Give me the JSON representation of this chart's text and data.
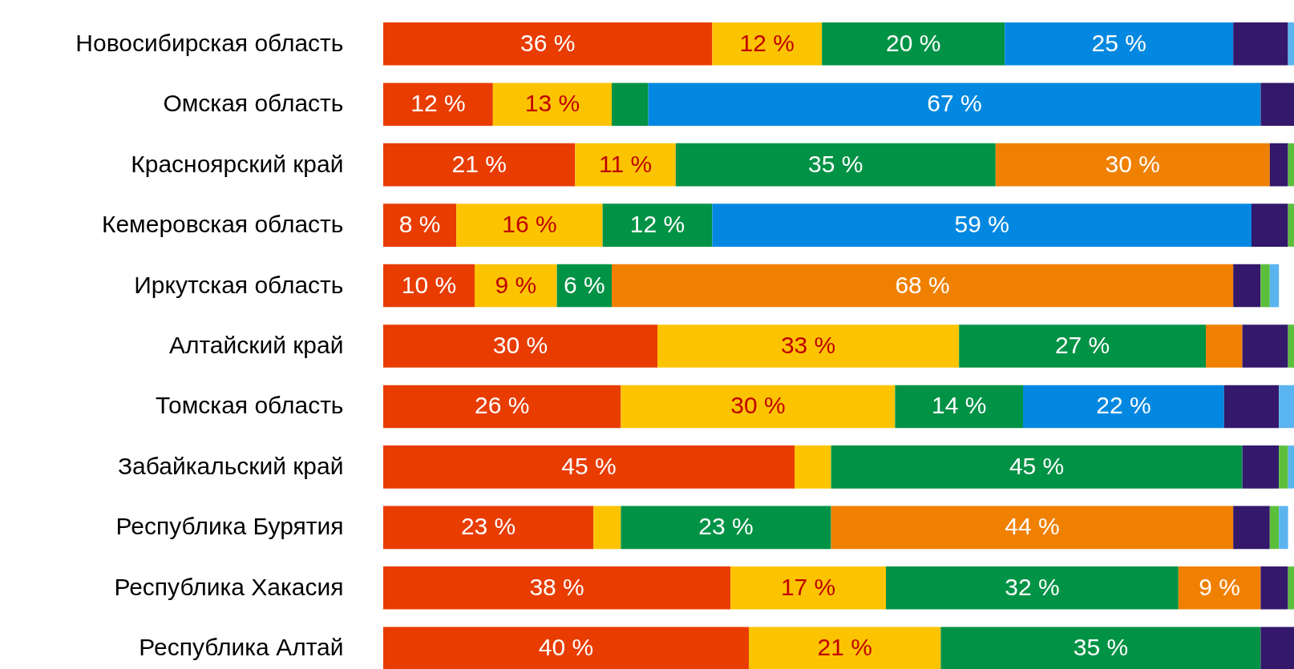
{
  "chart_data": {
    "type": "bar",
    "orientation": "horizontal",
    "stacked": true,
    "categories": [
      "Новосибирская область",
      "Омская  область",
      "Красноярский край",
      "Кемеровская  область",
      "Иркутская  область",
      "Алтайский край",
      "Томская область",
      "Забайкальский край",
      "Республика Бурятия",
      "Республика Хакасия",
      "Республика Алтай"
    ],
    "series": [
      {
        "color": "#e83c00",
        "values": [
          36,
          12,
          21,
          8,
          10,
          30,
          26,
          45,
          23,
          38,
          40
        ],
        "value_labels": [
          "36 %",
          "12 %",
          "21 %",
          "8 %",
          "10 %",
          "30 %",
          "26 %",
          "45 %",
          "23 %",
          "38 %",
          "40 %"
        ]
      },
      {
        "color": "#fcc400",
        "values": [
          12,
          13,
          11,
          16,
          9,
          33,
          30,
          4,
          3,
          17,
          21
        ],
        "value_labels": [
          "12 %",
          "13 %",
          "11 %",
          "16 %",
          "9 %",
          "33 %",
          "30 %",
          null,
          null,
          "17 %",
          "21 %"
        ]
      },
      {
        "color": "#009245",
        "values": [
          20,
          4,
          35,
          12,
          6,
          27,
          14,
          45,
          23,
          32,
          35
        ],
        "value_labels": [
          "20 %",
          null,
          "35 %",
          "12 %",
          "6 %",
          "27 %",
          "14 %",
          "45 %",
          "23 %",
          "32 %",
          "35 %"
        ]
      },
      {
        "color": "#0288e0",
        "values": [
          25,
          67,
          null,
          59,
          null,
          null,
          22,
          null,
          null,
          null,
          null
        ],
        "value_labels": [
          "25 %",
          "67 %",
          null,
          "59 %",
          null,
          null,
          "22 %",
          null,
          null,
          null,
          null
        ]
      },
      {
        "color": "#f08000",
        "values": [
          null,
          null,
          30,
          null,
          68,
          4,
          null,
          null,
          44,
          9,
          null
        ],
        "value_labels": [
          null,
          null,
          "30 %",
          null,
          "68 %",
          null,
          null,
          null,
          "44 %",
          "9 %",
          null
        ]
      },
      {
        "color": "#33186b",
        "values": [
          6,
          4,
          2,
          4,
          3,
          5,
          6,
          4,
          4,
          3,
          4
        ]
      },
      {
        "color": "#5cbf3c",
        "values": [
          null,
          null,
          1,
          1,
          1,
          1,
          null,
          1,
          1,
          1,
          null
        ]
      },
      {
        "color": "#5ab4ef",
        "values": [
          1,
          null,
          null,
          null,
          1,
          null,
          2,
          1,
          1,
          null,
          null
        ]
      }
    ]
  }
}
